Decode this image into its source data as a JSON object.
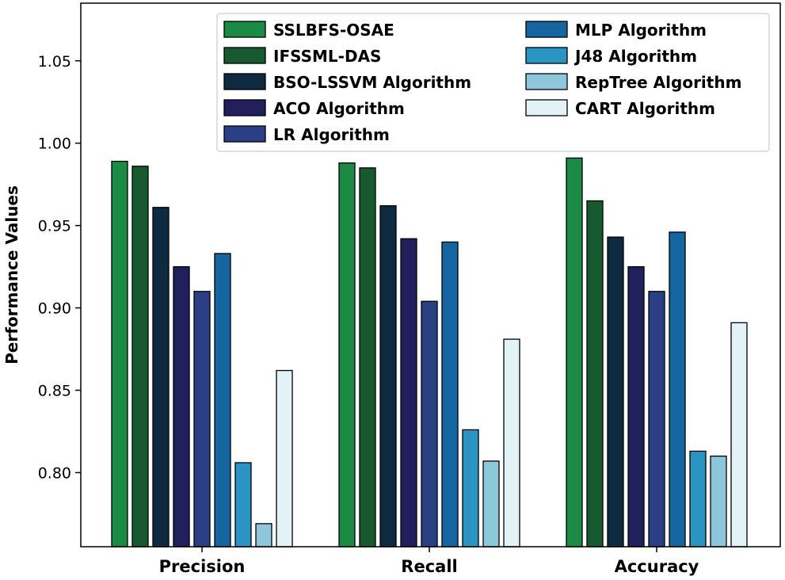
{
  "chart_data": {
    "type": "bar",
    "title": "",
    "xlabel": "",
    "ylabel": "Performance Values",
    "ylim": [
      0.755,
      1.085
    ],
    "yticks": [
      0.8,
      0.85,
      0.9,
      0.95,
      1.0,
      1.05
    ],
    "ytick_labels": [
      "0.80",
      "0.85",
      "0.90",
      "0.95",
      "1.00",
      "1.05"
    ],
    "grid": false,
    "legend_position": "top-right",
    "categories": [
      "Precision",
      "Recall",
      "Accuracy"
    ],
    "series": [
      {
        "name": "SSLBFS-OSAE",
        "color": "#1a8a45",
        "values": [
          0.989,
          0.988,
          0.991
        ]
      },
      {
        "name": "IFSSML-DAS",
        "color": "#175a30",
        "values": [
          0.986,
          0.985,
          0.965
        ]
      },
      {
        "name": "BSO-LSSVM Algorithm",
        "color": "#0e2a40",
        "values": [
          0.961,
          0.962,
          0.943
        ]
      },
      {
        "name": "ACO Algorithm",
        "color": "#211f5c",
        "values": [
          0.925,
          0.942,
          0.925
        ]
      },
      {
        "name": "LR Algorithm",
        "color": "#2b3f84",
        "values": [
          0.91,
          0.904,
          0.91
        ]
      },
      {
        "name": "MLP Algorithm",
        "color": "#1565a1",
        "values": [
          0.933,
          0.94,
          0.946
        ]
      },
      {
        "name": "J48 Algorithm",
        "color": "#2a95c2",
        "values": [
          0.806,
          0.826,
          0.813
        ]
      },
      {
        "name": "RepTree Algorithm",
        "color": "#8ec6dc",
        "values": [
          0.769,
          0.807,
          0.81
        ]
      },
      {
        "name": "CART Algorithm",
        "color": "#e2f2f7",
        "values": [
          0.862,
          0.881,
          0.891
        ]
      }
    ]
  }
}
